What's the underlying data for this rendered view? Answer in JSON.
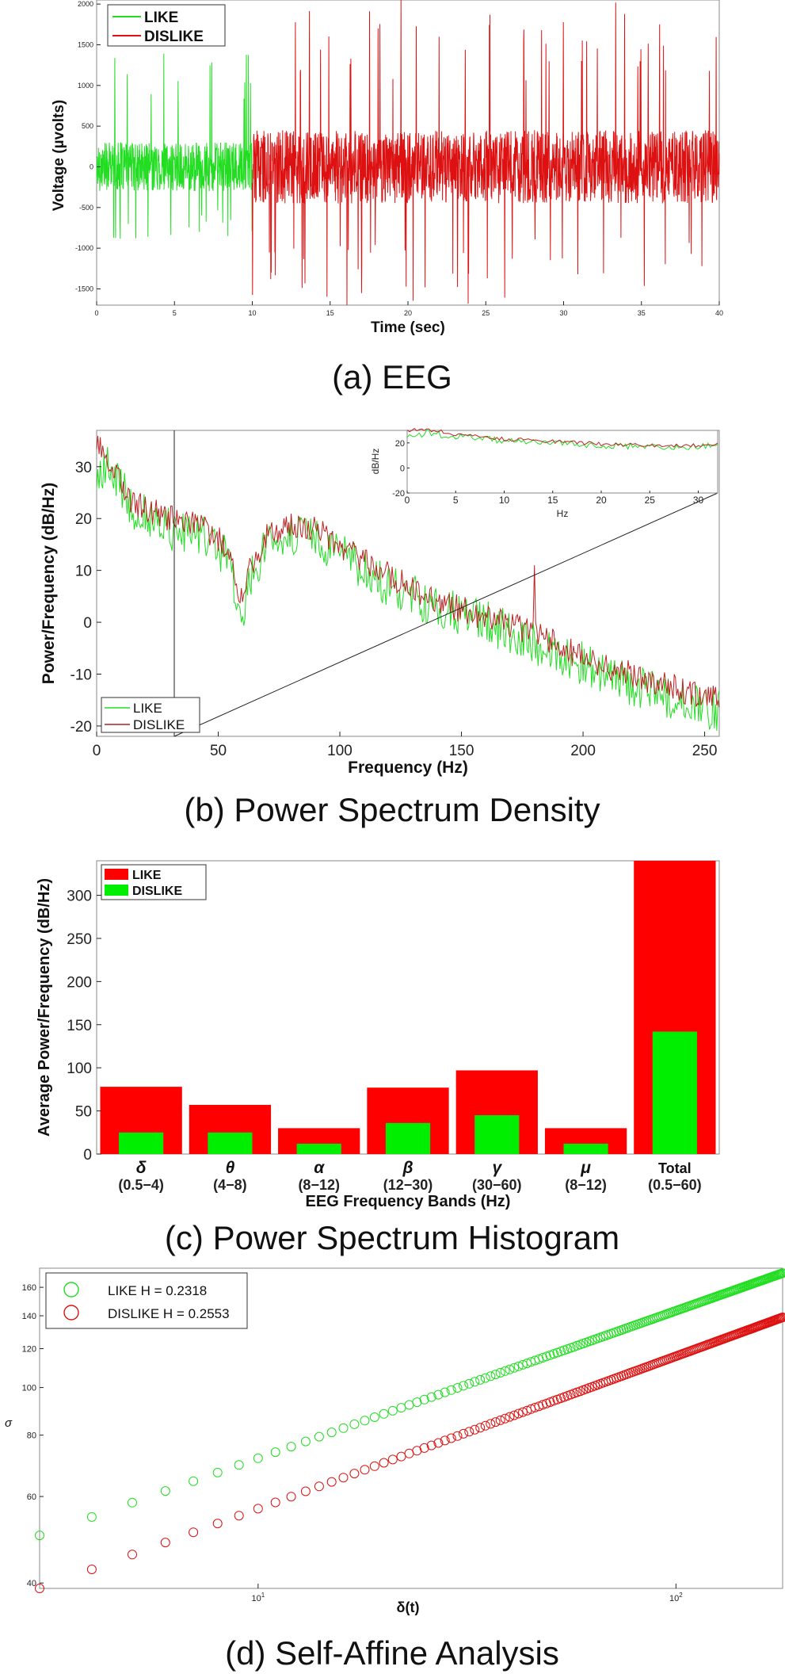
{
  "colors": {
    "like": "#22dd22",
    "dislike": "#dd1111",
    "axis": "#222222"
  },
  "chart_data": [
    {
      "type": "line",
      "caption": "(a) EEG",
      "xlabel": "Time (sec)",
      "ylabel": "Voltage (µvolts)",
      "xlim": [
        0,
        40
      ],
      "ylim": [
        -1700,
        2050
      ],
      "xticks": [
        0,
        5,
        10,
        15,
        20,
        25,
        30,
        35,
        40
      ],
      "yticks": [
        -1500,
        -1000,
        -500,
        0,
        500,
        1000,
        1500,
        2000
      ],
      "legend": [
        "LIKE",
        "DISLIKE"
      ],
      "legend_position": "top-left",
      "series": [
        {
          "name": "LIKE",
          "x_range": [
            0,
            10
          ],
          "baseline": 0,
          "typical_amplitude": 300,
          "peak_max": 1400,
          "peak_min": -900
        },
        {
          "name": "DISLIKE",
          "x_range": [
            10,
            40
          ],
          "baseline": 0,
          "typical_amplitude": 450,
          "peak_max": 2100,
          "peak_min": -1700
        }
      ]
    },
    {
      "type": "line",
      "caption": "(b) Power Spectrum Density",
      "xlabel": "Frequency (Hz)",
      "ylabel": "Power/Frequency (dB/Hz)",
      "xlim": [
        0,
        256
      ],
      "ylim": [
        -22,
        37
      ],
      "xticks": [
        0,
        50,
        100,
        150,
        200,
        250
      ],
      "yticks": [
        -20,
        -10,
        0,
        10,
        20,
        30
      ],
      "legend": [
        "LIKE",
        "DISLIKE"
      ],
      "legend_position": "bottom-left",
      "series": [
        {
          "name": "LIKE",
          "x": [
            0,
            5,
            15,
            30,
            45,
            55,
            58,
            60,
            63,
            70,
            80,
            90,
            100,
            120,
            140,
            160,
            180,
            200,
            220,
            240,
            256
          ],
          "y": [
            27,
            30,
            22,
            18,
            16,
            12,
            3,
            1,
            8,
            15,
            17,
            16,
            13,
            7,
            3,
            0,
            -4,
            -8,
            -12,
            -15,
            -17
          ]
        },
        {
          "name": "DISLIKE",
          "x": [
            0,
            5,
            15,
            30,
            45,
            55,
            58,
            60,
            63,
            70,
            80,
            90,
            100,
            120,
            140,
            160,
            180,
            200,
            220,
            240,
            256
          ],
          "y": [
            34,
            31,
            23,
            20,
            18,
            14,
            6,
            4,
            10,
            17,
            19,
            18,
            15,
            9,
            4,
            1,
            -2,
            -7,
            -10,
            -13,
            -15
          ]
        }
      ],
      "spike": {
        "name": "DISLIKE",
        "x": 180,
        "y": 11
      },
      "inset": {
        "xlabel": "Hz",
        "ylabel": "dB/Hz",
        "xlim": [
          0,
          32
        ],
        "ylim": [
          -20,
          30
        ],
        "xticks": [
          0,
          5,
          10,
          15,
          20,
          25,
          30
        ],
        "yticks": [
          -20,
          0,
          20
        ],
        "series": [
          {
            "name": "LIKE",
            "x": [
              0,
              2,
              5,
              8,
              10,
              13,
              15,
              18,
              20,
              25,
              30,
              32
            ],
            "y": [
              24,
              28,
              25,
              23,
              22,
              21,
              20,
              19,
              18,
              17,
              17,
              18
            ]
          },
          {
            "name": "DISLIKE",
            "x": [
              0,
              2,
              5,
              8,
              10,
              13,
              15,
              18,
              20,
              25,
              30,
              32
            ],
            "y": [
              30,
              31,
              27,
              25,
              23,
              22,
              21,
              20,
              19,
              18,
              18,
              19
            ]
          }
        ]
      }
    },
    {
      "type": "bar",
      "caption": "(c) Power Spectrum Histogram",
      "xlabel": "EEG Frequency Bands (Hz)",
      "ylabel": "Average Power/Frequency (dB/Hz)",
      "ylim": [
        0,
        340
      ],
      "yticks": [
        0,
        50,
        100,
        150,
        200,
        250,
        300
      ],
      "categories": [
        {
          "symbol": "δ",
          "range": "(0.5−4)"
        },
        {
          "symbol": "θ",
          "range": "(4−8)"
        },
        {
          "symbol": "α",
          "range": "(8−12)"
        },
        {
          "symbol": "β",
          "range": "(12−30)"
        },
        {
          "symbol": "γ",
          "range": "(30−60)"
        },
        {
          "symbol": "μ",
          "range": "(8−12)"
        },
        {
          "symbol": "Total",
          "range": "(0.5−60)"
        }
      ],
      "series": [
        {
          "name": "LIKE",
          "values": [
            78,
            57,
            30,
            77,
            97,
            30,
            340
          ]
        },
        {
          "name": "DISLIKE",
          "values": [
            25,
            25,
            12,
            36,
            45,
            12,
            142
          ]
        }
      ],
      "legend": [
        "LIKE",
        "DISLIKE"
      ],
      "legend_position": "top-left"
    },
    {
      "type": "scatter",
      "caption": "(d) Self-Affine Analysis",
      "xlabel": "δ(t)",
      "ylabel": "σ",
      "xscale": "log",
      "yscale": "log",
      "xlim": [
        3,
        180
      ],
      "ylim": [
        39,
        175
      ],
      "xticks": [
        10,
        100
      ],
      "xtick_labels": [
        {
          "base": "10",
          "exp": "1"
        },
        {
          "base": "10",
          "exp": "2"
        }
      ],
      "yticks": [
        40,
        60,
        80,
        100,
        120,
        140,
        160
      ],
      "legend": [
        "LIKE H = 0.2318",
        "DISLIKE H = 0.2553"
      ],
      "legend_position": "top-left",
      "series": [
        {
          "name": "LIKE",
          "H": 0.2318,
          "y_at_start": 50,
          "y_at_end": 171,
          "x_range": [
            3,
            180
          ]
        },
        {
          "name": "DISLIKE",
          "H": 0.2553,
          "y_at_start": 39,
          "y_at_end": 139,
          "x_range": [
            3,
            180
          ]
        }
      ]
    }
  ]
}
